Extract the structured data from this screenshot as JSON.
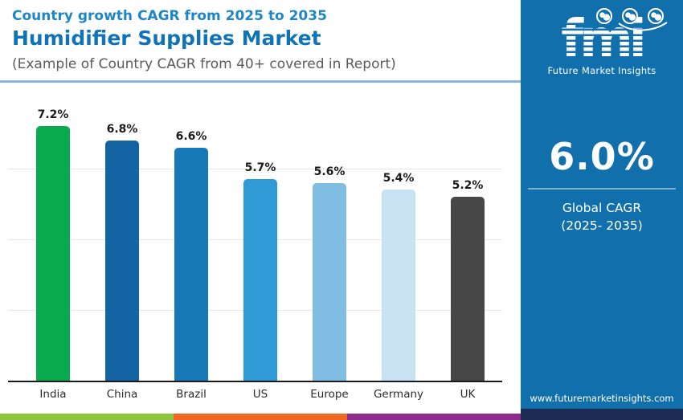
{
  "header": {
    "kicker": "Country growth CAGR from 2025 to 2035",
    "title": "Humidifier Supplies Market",
    "subtitle": "(Example of Country CAGR from 40+ covered in Report)"
  },
  "chart_data": {
    "type": "bar",
    "categories": [
      "India",
      "China",
      "Brazil",
      "US",
      "Europe",
      "Germany",
      "UK"
    ],
    "values": [
      7.2,
      6.8,
      6.6,
      5.7,
      5.6,
      5.4,
      5.2
    ],
    "value_labels": [
      "7.2%",
      "6.8%",
      "6.6%",
      "5.7%",
      "5.6%",
      "5.4%",
      "5.2%"
    ],
    "bar_colors": [
      "#09a94d",
      "#1464a4",
      "#1778b7",
      "#2f9ad6",
      "#7fbde3",
      "#c8e2f3",
      "#474747"
    ],
    "title": "Country growth CAGR from 2025 to 2035",
    "subtitle": "Humidifier Supplies Market",
    "xlabel": "",
    "ylabel": "",
    "ylim": [
      0,
      8
    ],
    "gridlines": [
      2,
      4,
      6
    ],
    "grid": true,
    "legend": false,
    "value_label_position": "above-bar"
  },
  "panel": {
    "logo_text": "fmi",
    "logo_caption": "Future Market Insights",
    "logo_icons": [
      "us-map-globe-icon",
      "europe-map-globe-icon",
      "world-globe-icon"
    ],
    "stat_value": "6.0%",
    "stat_label_line1": "Global CAGR",
    "stat_label_line2": "(2025- 2035)",
    "website": "www.futuremarketinsights.com",
    "bg_color": "#1170ac",
    "footer_color": "#1b2b52",
    "divider_color": "#7db1d3"
  },
  "footer_stripes": [
    "#8fc43f",
    "#ee6723",
    "#8e2c8e"
  ]
}
